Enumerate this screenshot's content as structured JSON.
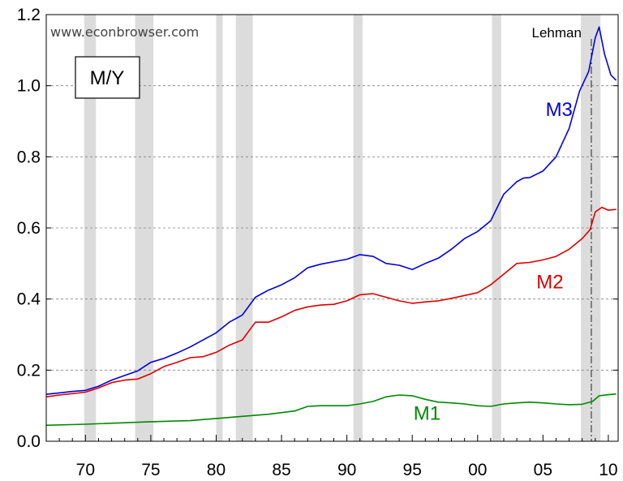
{
  "chart_data": {
    "type": "line",
    "title_box": "M/Y",
    "watermark": "www.econbrowser.com",
    "xlim": [
      1967,
      2010.75
    ],
    "ylim": [
      0,
      1.2
    ],
    "x_ticks": [
      {
        "value": 1970,
        "label": "70"
      },
      {
        "value": 1975,
        "label": "75"
      },
      {
        "value": 1980,
        "label": "80"
      },
      {
        "value": 1985,
        "label": "85"
      },
      {
        "value": 1990,
        "label": "90"
      },
      {
        "value": 1995,
        "label": "95"
      },
      {
        "value": 2000,
        "label": "00"
      },
      {
        "value": 2005,
        "label": "05"
      },
      {
        "value": 2010,
        "label": "10"
      }
    ],
    "y_ticks": [
      {
        "value": 0.0,
        "label": "0.0"
      },
      {
        "value": 0.2,
        "label": "0.2"
      },
      {
        "value": 0.4,
        "label": "0.4"
      },
      {
        "value": 0.6,
        "label": "0.6"
      },
      {
        "value": 0.8,
        "label": "0.8"
      },
      {
        "value": 1.0,
        "label": "1.0"
      },
      {
        "value": 1.2,
        "label": "1.2"
      }
    ],
    "gridlines": "horizontal dashed",
    "recessions": [
      [
        1969.9,
        1970.8
      ],
      [
        1973.8,
        1975.2
      ],
      [
        1980.0,
        1980.5
      ],
      [
        1981.5,
        1982.8
      ],
      [
        1990.5,
        1991.2
      ],
      [
        2001.1,
        2001.8
      ],
      [
        2007.9,
        2009.4
      ]
    ],
    "event_line": {
      "x": 2008.7,
      "label": "Lehman"
    },
    "series": [
      {
        "name": "M3",
        "color": "#0000dd",
        "label_pos": {
          "x": 2005.2,
          "y": 0.915
        },
        "points": [
          [
            1967.0,
            0.132
          ],
          [
            1968.0,
            0.136
          ],
          [
            1969.0,
            0.14
          ],
          [
            1970.0,
            0.143
          ],
          [
            1971.0,
            0.155
          ],
          [
            1972.0,
            0.172
          ],
          [
            1973.0,
            0.185
          ],
          [
            1974.0,
            0.198
          ],
          [
            1975.0,
            0.222
          ],
          [
            1976.0,
            0.233
          ],
          [
            1977.0,
            0.248
          ],
          [
            1978.0,
            0.265
          ],
          [
            1979.0,
            0.285
          ],
          [
            1980.0,
            0.305
          ],
          [
            1981.0,
            0.335
          ],
          [
            1982.0,
            0.355
          ],
          [
            1983.0,
            0.405
          ],
          [
            1984.0,
            0.425
          ],
          [
            1985.0,
            0.44
          ],
          [
            1986.0,
            0.46
          ],
          [
            1987.0,
            0.488
          ],
          [
            1988.0,
            0.498
          ],
          [
            1989.0,
            0.505
          ],
          [
            1990.0,
            0.512
          ],
          [
            1991.0,
            0.525
          ],
          [
            1992.0,
            0.52
          ],
          [
            1993.0,
            0.5
          ],
          [
            1994.0,
            0.495
          ],
          [
            1995.0,
            0.483
          ],
          [
            1996.0,
            0.5
          ],
          [
            1997.0,
            0.515
          ],
          [
            1998.0,
            0.54
          ],
          [
            1999.0,
            0.57
          ],
          [
            2000.0,
            0.59
          ],
          [
            2001.0,
            0.62
          ],
          [
            2002.0,
            0.695
          ],
          [
            2003.0,
            0.73
          ],
          [
            2003.5,
            0.74
          ],
          [
            2004.0,
            0.742
          ],
          [
            2005.0,
            0.76
          ],
          [
            2006.0,
            0.8
          ],
          [
            2007.0,
            0.88
          ],
          [
            2007.8,
            0.985
          ],
          [
            2008.5,
            1.04
          ],
          [
            2009.0,
            1.135
          ],
          [
            2009.3,
            1.165
          ],
          [
            2009.7,
            1.09
          ],
          [
            2010.2,
            1.03
          ],
          [
            2010.6,
            1.015
          ]
        ]
      },
      {
        "name": "M2",
        "color": "#dd0000",
        "label_pos": {
          "x": 2004.5,
          "y": 0.43
        },
        "points": [
          [
            1967.0,
            0.125
          ],
          [
            1968.0,
            0.13
          ],
          [
            1969.0,
            0.134
          ],
          [
            1970.0,
            0.138
          ],
          [
            1971.0,
            0.15
          ],
          [
            1972.0,
            0.165
          ],
          [
            1973.0,
            0.172
          ],
          [
            1974.0,
            0.175
          ],
          [
            1975.0,
            0.19
          ],
          [
            1976.0,
            0.21
          ],
          [
            1977.0,
            0.222
          ],
          [
            1978.0,
            0.235
          ],
          [
            1979.0,
            0.238
          ],
          [
            1980.0,
            0.25
          ],
          [
            1981.0,
            0.27
          ],
          [
            1982.0,
            0.285
          ],
          [
            1983.0,
            0.335
          ],
          [
            1984.0,
            0.335
          ],
          [
            1985.0,
            0.35
          ],
          [
            1986.0,
            0.368
          ],
          [
            1987.0,
            0.378
          ],
          [
            1988.0,
            0.383
          ],
          [
            1989.0,
            0.385
          ],
          [
            1990.0,
            0.395
          ],
          [
            1991.0,
            0.412
          ],
          [
            1992.0,
            0.415
          ],
          [
            1993.0,
            0.405
          ],
          [
            1994.0,
            0.395
          ],
          [
            1995.0,
            0.388
          ],
          [
            1996.0,
            0.392
          ],
          [
            1997.0,
            0.395
          ],
          [
            1998.0,
            0.402
          ],
          [
            1999.0,
            0.41
          ],
          [
            2000.0,
            0.418
          ],
          [
            2001.0,
            0.44
          ],
          [
            2002.0,
            0.47
          ],
          [
            2003.0,
            0.5
          ],
          [
            2004.0,
            0.503
          ],
          [
            2005.0,
            0.51
          ],
          [
            2006.0,
            0.52
          ],
          [
            2007.0,
            0.54
          ],
          [
            2008.0,
            0.57
          ],
          [
            2008.6,
            0.595
          ],
          [
            2009.0,
            0.645
          ],
          [
            2009.5,
            0.658
          ],
          [
            2010.0,
            0.65
          ],
          [
            2010.6,
            0.652
          ]
        ]
      },
      {
        "name": "M1",
        "color": "#008800",
        "label_pos": {
          "x": 1995.1,
          "y": 0.06
        },
        "points": [
          [
            1967.0,
            0.045
          ],
          [
            1970.0,
            0.048
          ],
          [
            1975.0,
            0.055
          ],
          [
            1978.0,
            0.058
          ],
          [
            1980.0,
            0.064
          ],
          [
            1982.0,
            0.07
          ],
          [
            1984.0,
            0.076
          ],
          [
            1986.0,
            0.085
          ],
          [
            1987.0,
            0.098
          ],
          [
            1988.0,
            0.1
          ],
          [
            1990.0,
            0.1
          ],
          [
            1991.0,
            0.105
          ],
          [
            1992.0,
            0.112
          ],
          [
            1993.0,
            0.125
          ],
          [
            1994.0,
            0.13
          ],
          [
            1995.0,
            0.128
          ],
          [
            1996.0,
            0.118
          ],
          [
            1997.0,
            0.11
          ],
          [
            1998.0,
            0.108
          ],
          [
            1999.0,
            0.105
          ],
          [
            2000.0,
            0.1
          ],
          [
            2001.0,
            0.098
          ],
          [
            2002.0,
            0.105
          ],
          [
            2003.0,
            0.108
          ],
          [
            2004.0,
            0.11
          ],
          [
            2005.0,
            0.108
          ],
          [
            2006.0,
            0.105
          ],
          [
            2007.0,
            0.103
          ],
          [
            2008.0,
            0.104
          ],
          [
            2008.8,
            0.112
          ],
          [
            2009.3,
            0.128
          ],
          [
            2010.0,
            0.131
          ],
          [
            2010.6,
            0.133
          ]
        ]
      }
    ]
  }
}
